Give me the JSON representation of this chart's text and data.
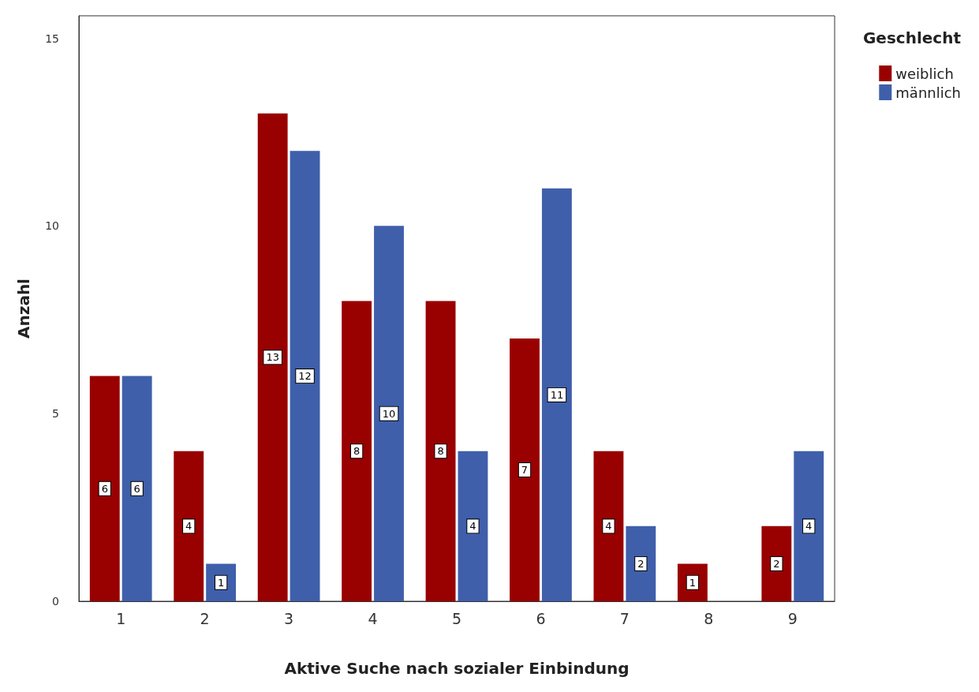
{
  "chart_data": {
    "type": "bar",
    "xlabel": "Aktive Suche nach sozialer Einbindung",
    "ylabel": "Anzahl",
    "legend_title": "Geschlecht",
    "categories": [
      "1",
      "2",
      "3",
      "4",
      "5",
      "6",
      "7",
      "8",
      "9"
    ],
    "series": [
      {
        "name": "weiblich",
        "color": "#990000",
        "values": [
          6,
          4,
          13,
          8,
          8,
          7,
          4,
          1,
          2
        ]
      },
      {
        "name": "männlich",
        "color": "#3f5fab",
        "values": [
          6,
          1,
          12,
          10,
          4,
          11,
          2,
          null,
          4
        ]
      }
    ],
    "ylim": [
      0,
      15.6
    ],
    "yticks": [
      0,
      5,
      10,
      15
    ],
    "grid": false,
    "legend": "top right",
    "data_labels": true
  }
}
